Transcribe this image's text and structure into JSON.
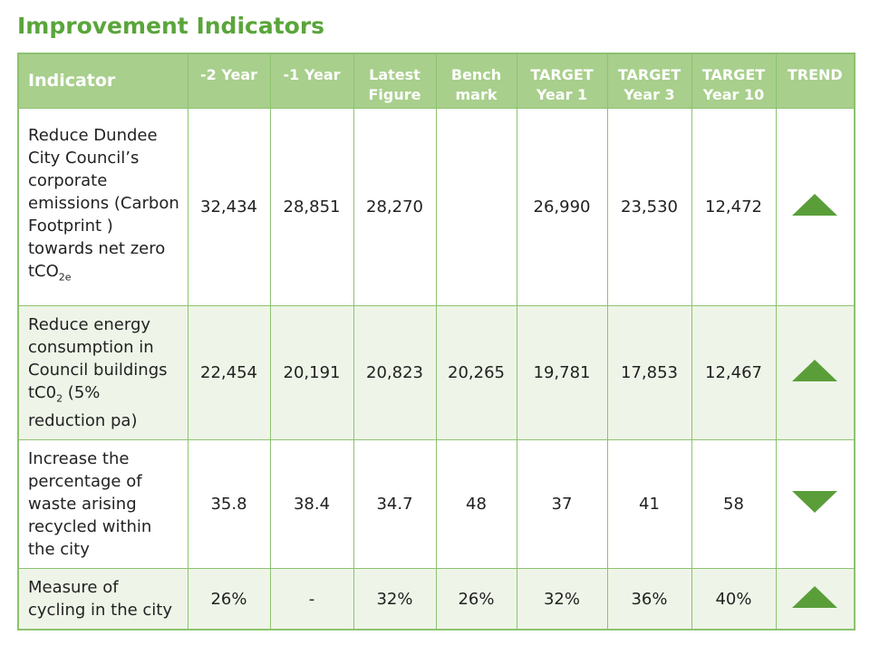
{
  "title": "Improvement Indicators",
  "table": {
    "headers": [
      [
        "Indicator"
      ],
      [
        "-2 Year"
      ],
      [
        "-1 Year"
      ],
      [
        "Latest",
        "Figure"
      ],
      [
        "Bench",
        "mark"
      ],
      [
        "TARGET",
        "Year 1"
      ],
      [
        "TARGET",
        "Year 3"
      ],
      [
        "TARGET",
        "Year 10"
      ],
      [
        "TREND"
      ]
    ],
    "rows": [
      {
        "indicator": {
          "text": "Reduce Dundee City Council’s corporate emissions (Carbon Footprint ) towards net zero tCO",
          "sub": "2e"
        },
        "cells": [
          "32,434",
          "28,851",
          "28,270",
          null,
          "26,990",
          "23,530",
          "12,472"
        ]
      },
      {
        "indicator": {
          "text": "Reduce energy consumption in Council buildings tC0",
          "sub": "2",
          "after": " (5% reduction pa)"
        },
        "cells": [
          "22,454",
          "20,191",
          "20,823",
          "20,265",
          "19,781",
          "17,853",
          "12,467"
        ]
      },
      {
        "indicator": {
          "text": "Increase the percentage of waste arising recycled within the city"
        },
        "cells": [
          "35.8",
          "38.4",
          "34.7",
          "48",
          "37",
          "41",
          "58"
        ]
      },
      {
        "indicator": {
          "text": "Measure of cycling in the city"
        },
        "cells": [
          "26%",
          "-",
          "32%",
          "26%",
          "32%",
          "36%",
          "40%"
        ]
      }
    ]
  }
}
